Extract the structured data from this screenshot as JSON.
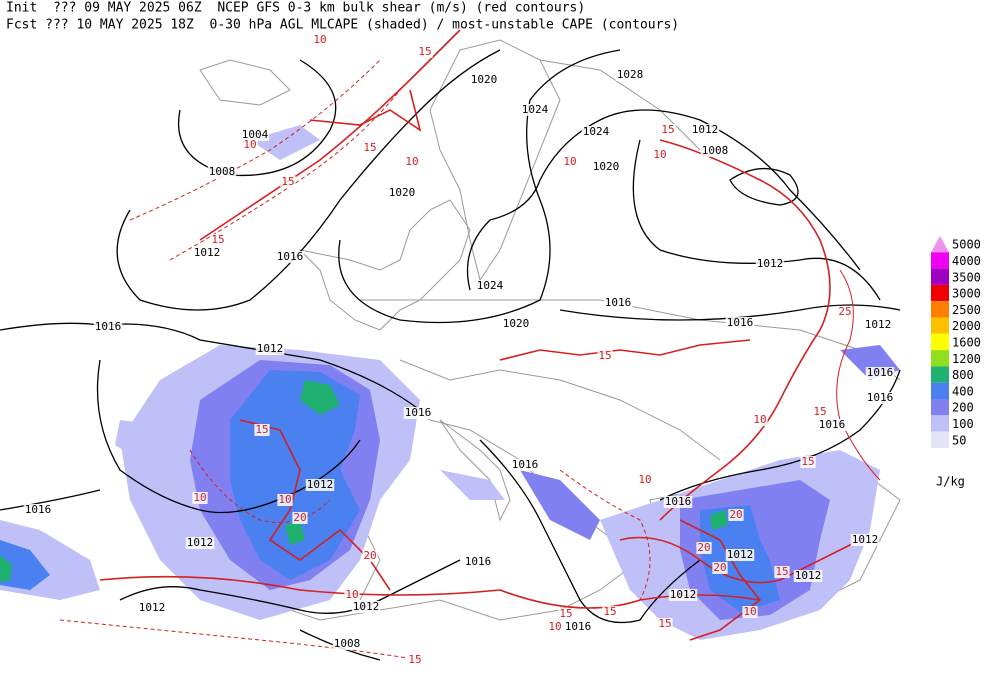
{
  "header": {
    "line1": "Init  ??? 09 MAY 2025 06Z  NCEP GFS 0-3 km bulk shear (m/s) (red contours)",
    "line2": "Fcst ??? 10 MAY 2025 18Z  0-30 hPa AGL MLCAPE (shaded) / most-unstable CAPE (contours)"
  },
  "legend": {
    "levels": [
      {
        "value": 5000,
        "color": "#f090f0"
      },
      {
        "value": 4000,
        "color": "#f000f0"
      },
      {
        "value": 3500,
        "color": "#a000c0"
      },
      {
        "value": 3000,
        "color": "#f00000"
      },
      {
        "value": 2500,
        "color": "#ff8000"
      },
      {
        "value": 2000,
        "color": "#ffc000"
      },
      {
        "value": 1600,
        "color": "#ffff00"
      },
      {
        "value": 1200,
        "color": "#90e020"
      },
      {
        "value": 800,
        "color": "#20b070"
      },
      {
        "value": 400,
        "color": "#4a80f0"
      },
      {
        "value": 200,
        "color": "#8080f0"
      },
      {
        "value": 100,
        "color": "#c0c0f8"
      },
      {
        "value": 50,
        "color": "#e4e4f8"
      }
    ],
    "unit": "J/kg"
  },
  "isobar_labels": [
    1028,
    1020,
    1024,
    1024,
    1012,
    1004,
    1008,
    1008,
    1020,
    1020,
    1012,
    1016,
    1024,
    1012,
    1016,
    1016,
    1016,
    1020,
    1012,
    1012,
    1016,
    1016,
    1016,
    1016,
    1016,
    1012,
    1016,
    1016,
    1012,
    1012,
    1012,
    1016,
    1012,
    1012,
    1012,
    1012,
    1016,
    1008
  ],
  "shear_labels": [
    10,
    15,
    10,
    15,
    15,
    10,
    10,
    15,
    15,
    10,
    15,
    25,
    15,
    10,
    10,
    15,
    10,
    20,
    20,
    10,
    20,
    15,
    10,
    15,
    20,
    20,
    15,
    10,
    15,
    10,
    15,
    15
  ]
}
